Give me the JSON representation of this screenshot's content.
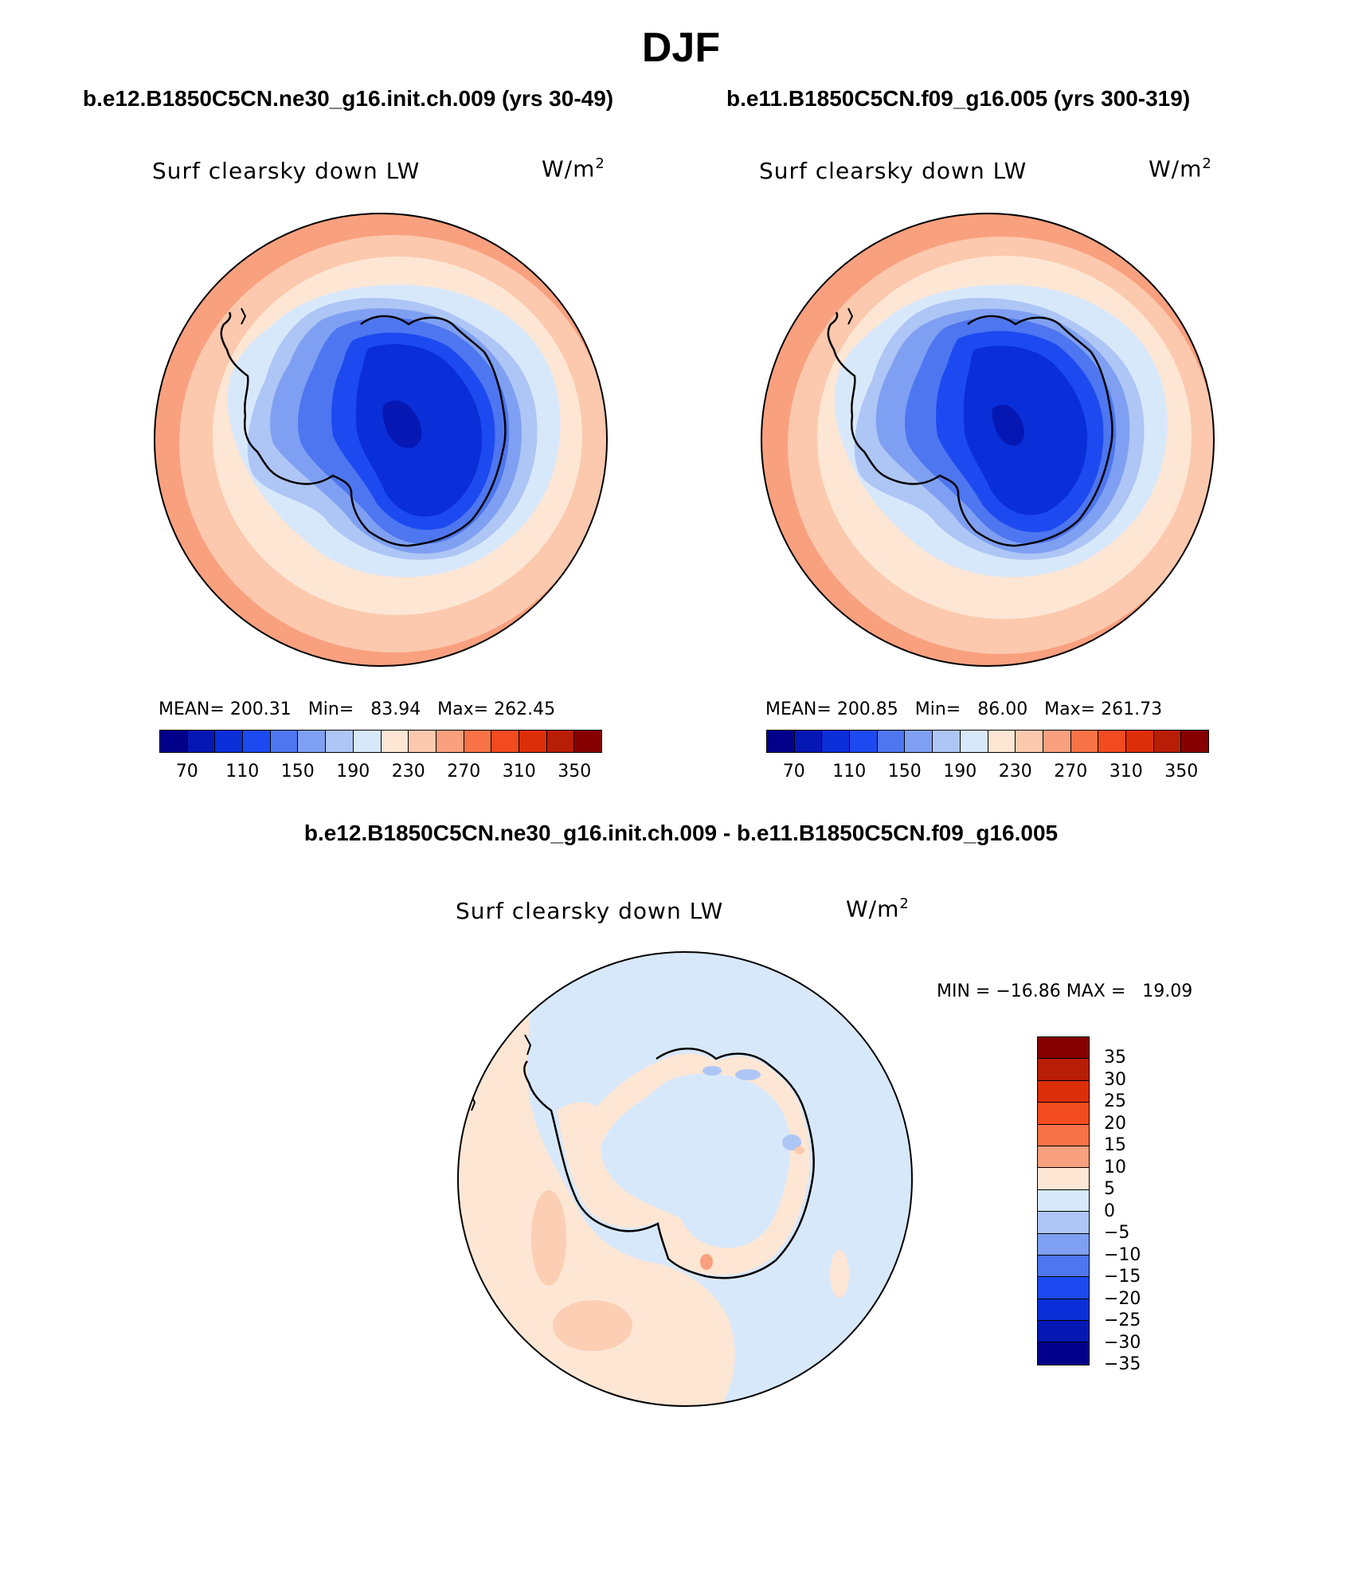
{
  "title": "DJF",
  "panels": {
    "left": {
      "case_title": "b.e12.B1850C5CN.ne30_g16.init.ch.009 (yrs 30-49)",
      "var_name": "Surf clearsky down LW",
      "units": "W/m",
      "units_sup": "2",
      "stats": "MEAN= 200.31   Min=   83.94   Max= 262.45"
    },
    "right": {
      "case_title": "b.e11.B1850C5CN.f09_g16.005 (yrs 300-319)",
      "var_name": "Surf clearsky down LW",
      "units": "W/m",
      "units_sup": "2",
      "stats": "MEAN= 200.85   Min=   86.00   Max= 261.73"
    },
    "diff": {
      "case_title": "b.e12.B1850C5CN.ne30_g16.init.ch.009 - b.e11.B1850C5CN.f09_g16.005",
      "var_name": "Surf clearsky down LW",
      "units": "W/m",
      "units_sup": "2",
      "minmax": "MIN = −16.86 MAX =   19.09"
    }
  },
  "abs_colorbar": {
    "colors": [
      "#00008b",
      "#0518b4",
      "#0a2fd8",
      "#1c4af0",
      "#4e76f0",
      "#7fa0f2",
      "#aec6f5",
      "#d8e8fb",
      "#fde6d4",
      "#fcc9ae",
      "#f9a07f",
      "#f77347",
      "#f24b20",
      "#dc2e08",
      "#b81d05",
      "#860000"
    ],
    "labels": [
      "70",
      "110",
      "150",
      "190",
      "230",
      "270",
      "310",
      "350"
    ]
  },
  "diff_colorbar": {
    "colors": [
      "#860000",
      "#b81d05",
      "#dc2e08",
      "#f24b20",
      "#f77347",
      "#f9a07f",
      "#fde6d4",
      "#d8e8fb",
      "#aec6f5",
      "#7fa0f2",
      "#4e76f0",
      "#1c4af0",
      "#0a2fd8",
      "#0518b4",
      "#00008b"
    ],
    "labels": [
      "35",
      "30",
      "25",
      "20",
      "15",
      "10",
      "5",
      "0",
      "−5",
      "−10",
      "−15",
      "−20",
      "−25",
      "−30",
      "−35"
    ]
  }
}
